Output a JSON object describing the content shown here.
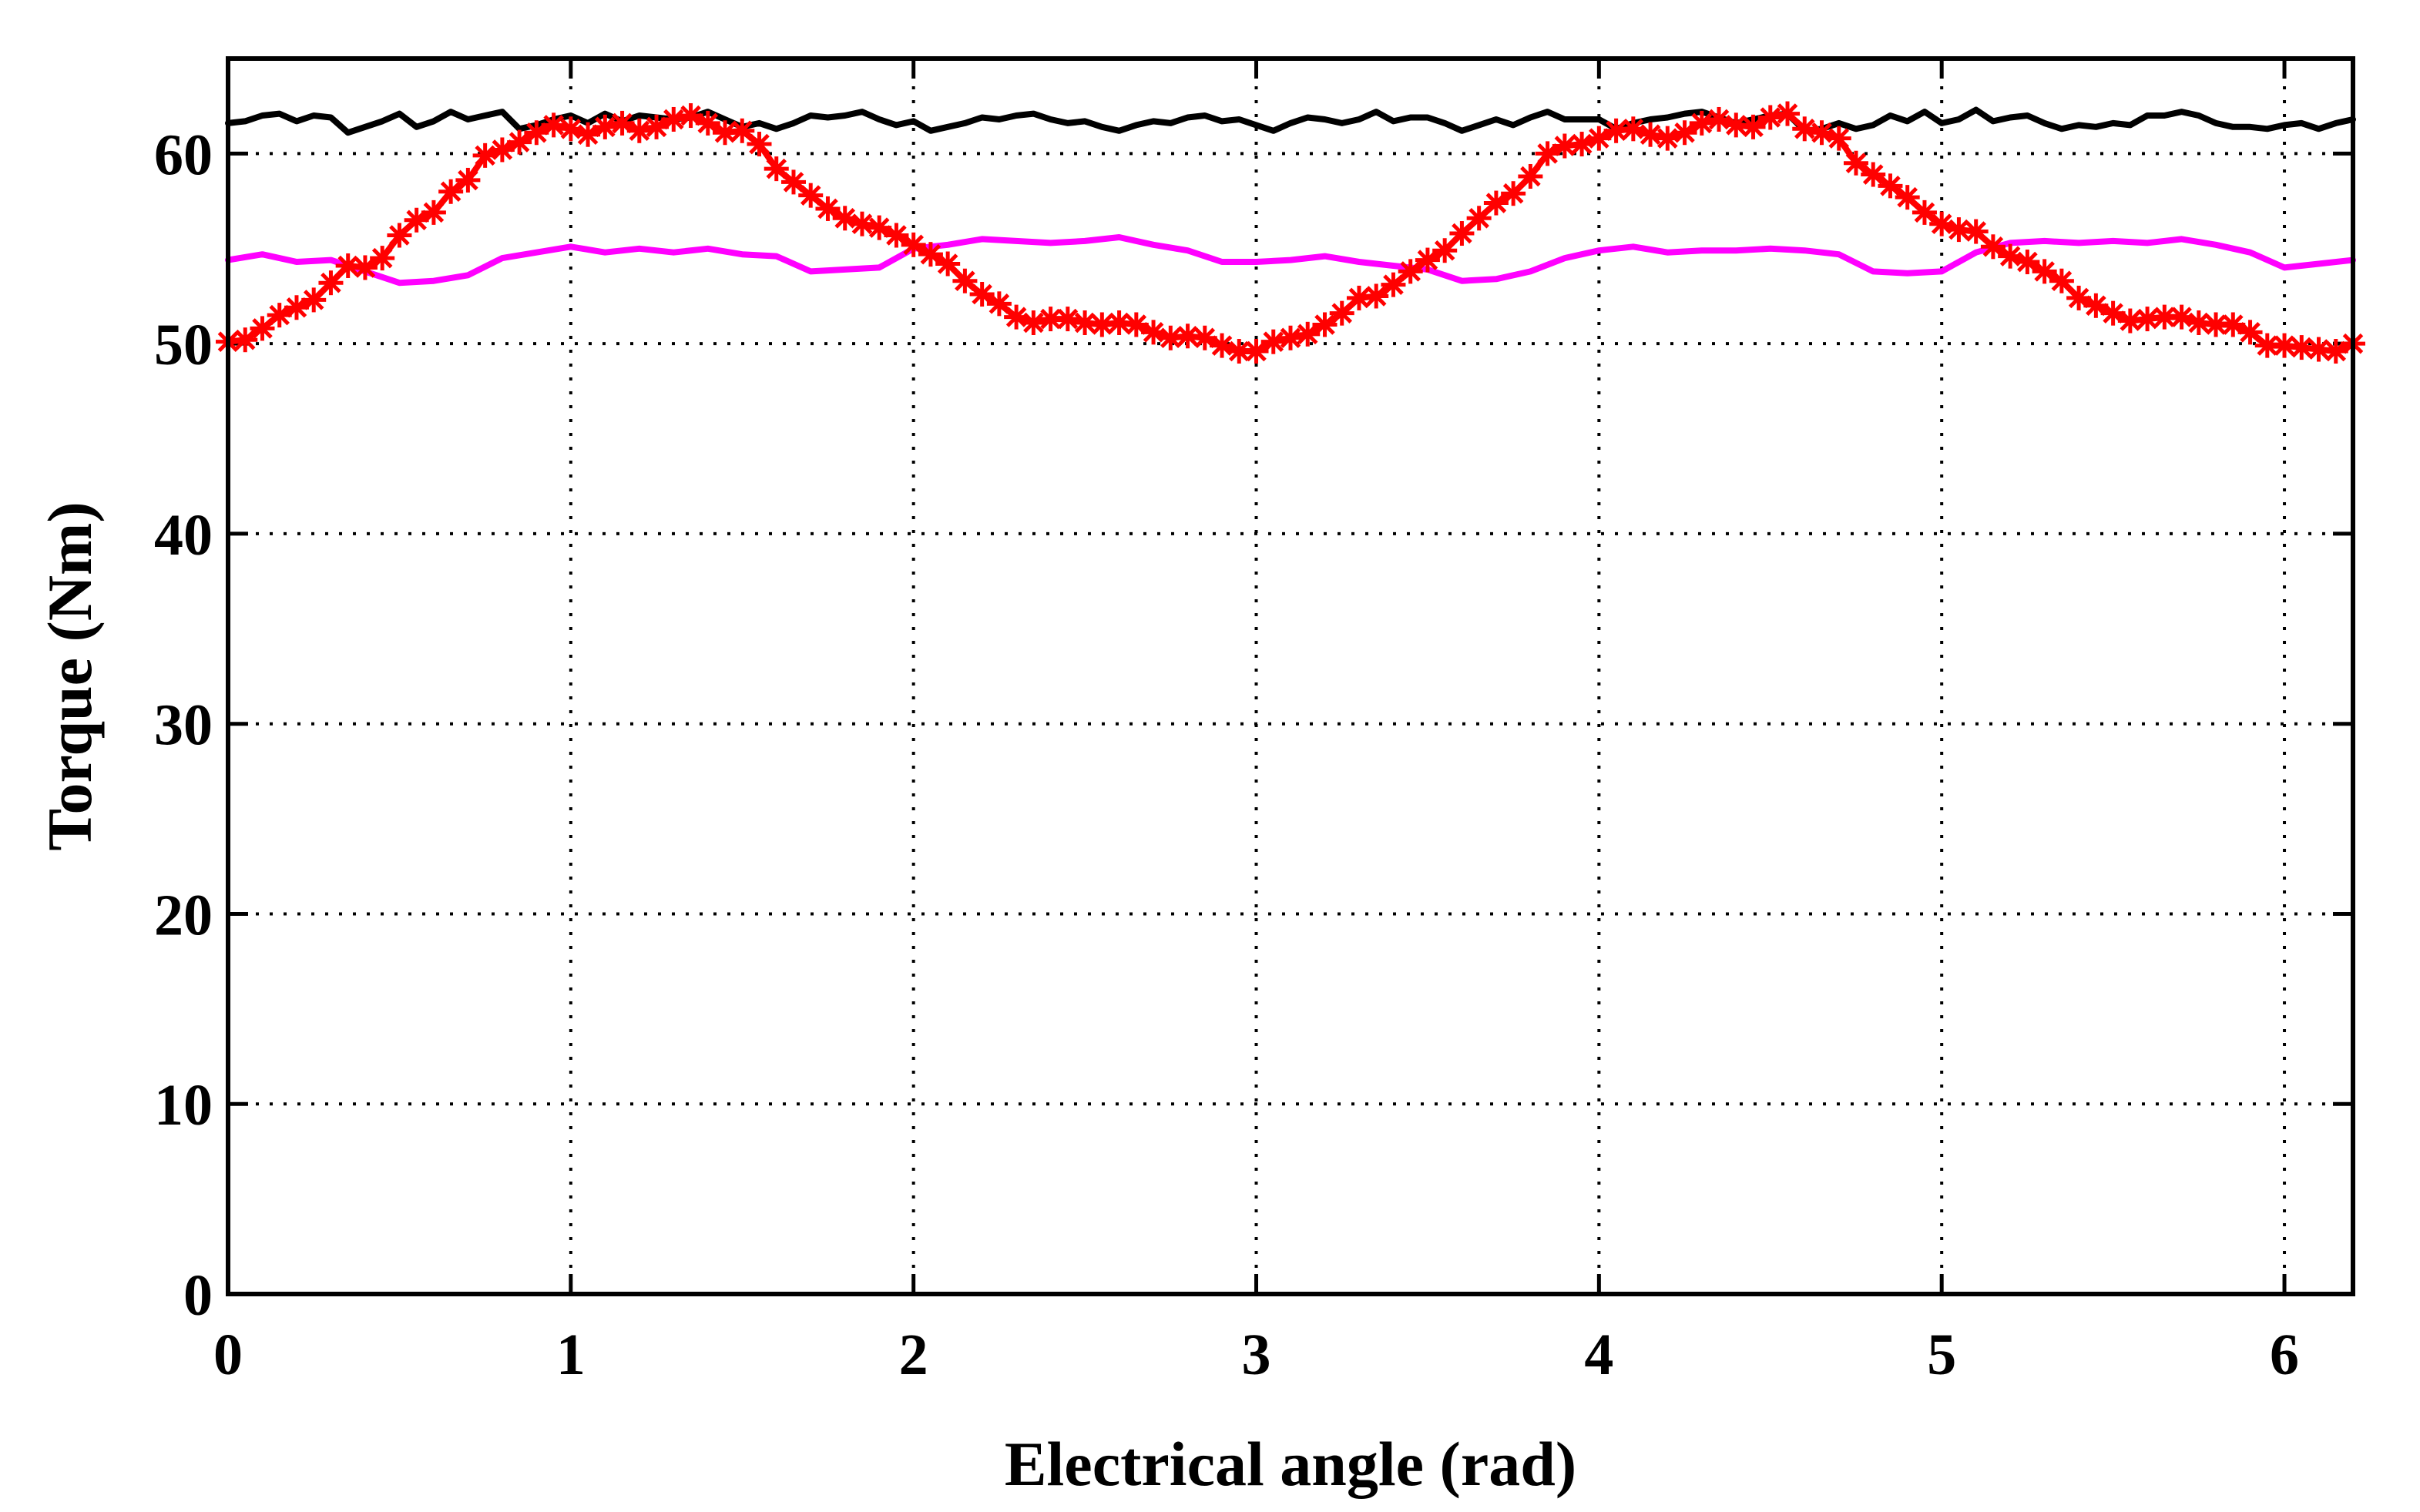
{
  "chart_data": {
    "type": "line",
    "title": "",
    "xlabel": "Electrical angle (rad)",
    "ylabel": "Torque (Nm)",
    "xlim": [
      0,
      6.2
    ],
    "ylim": [
      0,
      65
    ],
    "xticks": [
      "0",
      "1",
      "2",
      "3",
      "4",
      "5",
      "6"
    ],
    "yticks": [
      "0",
      "10",
      "20",
      "30",
      "40",
      "50",
      "60"
    ],
    "xtick_values": [
      0,
      1,
      2,
      3,
      4,
      5,
      6
    ],
    "ytick_values": [
      0,
      10,
      20,
      30,
      40,
      50,
      60
    ],
    "grid": true,
    "grid_style": "dotted",
    "legend": "none",
    "series": [
      {
        "color": "#000000",
        "marker": "none",
        "x": [
          0,
          0.05,
          0.1,
          0.15,
          0.2,
          0.25,
          0.3,
          0.35,
          0.4,
          0.45,
          0.5,
          0.55,
          0.6,
          0.65,
          0.7,
          0.75,
          0.8,
          0.85,
          0.9,
          0.95,
          1.0,
          1.05,
          1.1,
          1.15,
          1.2,
          1.25,
          1.3,
          1.35,
          1.4,
          1.45,
          1.5,
          1.55,
          1.6,
          1.65,
          1.7,
          1.75,
          1.8,
          1.85,
          1.9,
          1.95,
          2.0,
          2.05,
          2.1,
          2.15,
          2.2,
          2.25,
          2.3,
          2.35,
          2.4,
          2.45,
          2.5,
          2.55,
          2.6,
          2.65,
          2.7,
          2.75,
          2.8,
          2.85,
          2.9,
          2.95,
          3.0,
          3.05,
          3.1,
          3.15,
          3.2,
          3.25,
          3.3,
          3.35,
          3.4,
          3.45,
          3.5,
          3.55,
          3.6,
          3.65,
          3.7,
          3.75,
          3.8,
          3.85,
          3.9,
          3.95,
          4.0,
          4.05,
          4.1,
          4.15,
          4.2,
          4.25,
          4.3,
          4.35,
          4.4,
          4.45,
          4.5,
          4.55,
          4.6,
          4.65,
          4.7,
          4.75,
          4.8,
          4.85,
          4.9,
          4.95,
          5.0,
          5.05,
          5.1,
          5.15,
          5.2,
          5.25,
          5.3,
          5.35,
          5.4,
          5.45,
          5.5,
          5.55,
          5.6,
          5.65,
          5.7,
          5.75,
          5.8,
          5.85,
          5.9,
          5.95,
          6.0,
          6.05,
          6.1,
          6.15,
          6.2
        ],
        "values": [
          61.6,
          61.7,
          62.0,
          62.1,
          61.7,
          62.0,
          61.9,
          61.1,
          61.4,
          61.7,
          62.1,
          61.4,
          61.7,
          62.2,
          61.8,
          62.0,
          62.2,
          61.3,
          61.5,
          61.8,
          62.0,
          61.6,
          62.1,
          61.7,
          62.0,
          61.9,
          61.8,
          61.9,
          62.2,
          61.8,
          61.4,
          61.6,
          61.3,
          61.6,
          62.0,
          61.9,
          62.0,
          62.2,
          61.8,
          61.5,
          61.7,
          61.2,
          61.4,
          61.6,
          61.9,
          61.8,
          62.0,
          62.1,
          61.8,
          61.6,
          61.7,
          61.4,
          61.2,
          61.5,
          61.7,
          61.6,
          61.9,
          62.0,
          61.7,
          61.8,
          61.5,
          61.2,
          61.6,
          61.9,
          61.8,
          61.6,
          61.8,
          62.2,
          61.7,
          61.9,
          61.9,
          61.6,
          61.2,
          61.5,
          61.8,
          61.5,
          61.9,
          62.2,
          61.8,
          61.8,
          61.8,
          61.3,
          61.6,
          61.8,
          61.9,
          62.1,
          62.2,
          61.9,
          61.6,
          61.8,
          62.0,
          62.1,
          61.2,
          61.3,
          61.6,
          61.3,
          61.5,
          62.0,
          61.7,
          62.2,
          61.6,
          61.8,
          62.3,
          61.7,
          61.9,
          62.0,
          61.6,
          61.3,
          61.5,
          61.4,
          61.6,
          61.5,
          62.0,
          62.0,
          62.2,
          62.0,
          61.6,
          61.4,
          61.4,
          61.3,
          61.5,
          61.6,
          61.3,
          61.6,
          61.8
        ]
      },
      {
        "color": "#ff00ff",
        "marker": "none",
        "x": [
          0,
          0.1,
          0.2,
          0.3,
          0.4,
          0.5,
          0.6,
          0.7,
          0.8,
          0.9,
          1.0,
          1.1,
          1.2,
          1.3,
          1.4,
          1.5,
          1.6,
          1.7,
          1.8,
          1.9,
          2.0,
          2.1,
          2.2,
          2.3,
          2.4,
          2.5,
          2.6,
          2.7,
          2.8,
          2.9,
          3.0,
          3.1,
          3.2,
          3.3,
          3.4,
          3.5,
          3.6,
          3.7,
          3.8,
          3.9,
          4.0,
          4.1,
          4.2,
          4.3,
          4.4,
          4.5,
          4.6,
          4.7,
          4.8,
          4.9,
          5.0,
          5.1,
          5.2,
          5.3,
          5.4,
          5.5,
          5.6,
          5.7,
          5.8,
          5.9,
          6.0,
          6.1,
          6.2
        ],
        "values": [
          54.4,
          54.7,
          54.3,
          54.4,
          53.8,
          53.2,
          53.3,
          53.6,
          54.5,
          54.8,
          55.1,
          54.8,
          55.0,
          54.8,
          55.0,
          54.7,
          54.6,
          53.8,
          53.9,
          54.0,
          55.0,
          55.2,
          55.5,
          55.4,
          55.3,
          55.4,
          55.6,
          55.2,
          54.9,
          54.3,
          54.3,
          54.4,
          54.6,
          54.3,
          54.1,
          53.9,
          53.3,
          53.4,
          53.8,
          54.5,
          54.9,
          55.1,
          54.8,
          54.9,
          54.9,
          55.0,
          54.9,
          54.7,
          53.8,
          53.7,
          53.8,
          54.8,
          55.3,
          55.4,
          55.3,
          55.4,
          55.3,
          55.5,
          55.2,
          54.8,
          54.0,
          54.2,
          54.4
        ]
      },
      {
        "color": "#ff0000",
        "marker": "asterisk",
        "x": [
          0,
          0.05,
          0.1,
          0.15,
          0.2,
          0.25,
          0.3,
          0.35,
          0.4,
          0.45,
          0.5,
          0.55,
          0.6,
          0.65,
          0.7,
          0.75,
          0.8,
          0.85,
          0.9,
          0.95,
          1.0,
          1.05,
          1.1,
          1.15,
          1.2,
          1.25,
          1.3,
          1.35,
          1.4,
          1.45,
          1.5,
          1.55,
          1.6,
          1.65,
          1.7,
          1.75,
          1.8,
          1.85,
          1.9,
          1.95,
          2.0,
          2.05,
          2.1,
          2.15,
          2.2,
          2.25,
          2.3,
          2.35,
          2.4,
          2.45,
          2.5,
          2.55,
          2.6,
          2.65,
          2.7,
          2.75,
          2.8,
          2.85,
          2.9,
          2.95,
          3.0,
          3.05,
          3.1,
          3.15,
          3.2,
          3.25,
          3.3,
          3.35,
          3.4,
          3.45,
          3.5,
          3.55,
          3.6,
          3.65,
          3.7,
          3.75,
          3.8,
          3.85,
          3.9,
          3.95,
          4.0,
          4.05,
          4.1,
          4.15,
          4.2,
          4.25,
          4.3,
          4.35,
          4.4,
          4.45,
          4.5,
          4.55,
          4.6,
          4.65,
          4.7,
          4.75,
          4.8,
          4.85,
          4.9,
          4.95,
          5.0,
          5.05,
          5.1,
          5.15,
          5.2,
          5.25,
          5.3,
          5.35,
          5.4,
          5.45,
          5.5,
          5.55,
          5.6,
          5.65,
          5.7,
          5.75,
          5.8,
          5.85,
          5.9,
          5.95,
          6.0,
          6.05,
          6.1,
          6.15,
          6.2
        ],
        "values": [
          50.1,
          50.2,
          50.8,
          51.5,
          51.9,
          52.3,
          53.2,
          54.1,
          54.0,
          54.5,
          55.7,
          56.5,
          56.9,
          58.0,
          58.6,
          59.9,
          60.2,
          60.6,
          61.1,
          61.5,
          61.3,
          61.0,
          61.4,
          61.6,
          61.2,
          61.4,
          61.8,
          62.0,
          61.6,
          61.1,
          61.2,
          60.5,
          59.2,
          58.5,
          57.8,
          57.1,
          56.6,
          56.3,
          56.1,
          55.7,
          55.2,
          54.7,
          54.2,
          53.3,
          52.6,
          52.1,
          51.4,
          51.1,
          51.3,
          51.3,
          51.1,
          51.0,
          51.1,
          51.0,
          50.6,
          50.3,
          50.4,
          50.3,
          49.9,
          49.6,
          49.6,
          50.1,
          50.3,
          50.5,
          51.0,
          51.6,
          52.4,
          52.5,
          53.1,
          53.8,
          54.4,
          54.9,
          55.8,
          56.6,
          57.4,
          57.9,
          58.8,
          60.0,
          60.4,
          60.5,
          60.8,
          61.2,
          61.3,
          61.0,
          60.8,
          61.1,
          61.6,
          61.8,
          61.5,
          61.4,
          61.9,
          62.1,
          61.3,
          61.1,
          60.8,
          59.5,
          58.9,
          58.3,
          57.7,
          56.9,
          56.3,
          56.0,
          55.9,
          55.1,
          54.6,
          54.3,
          53.8,
          53.3,
          52.4,
          52.0,
          51.6,
          51.2,
          51.3,
          51.4,
          51.4,
          51.1,
          51.0,
          51.0,
          50.6,
          49.9,
          49.9,
          49.8,
          49.7,
          49.6,
          50.0
        ]
      }
    ]
  }
}
